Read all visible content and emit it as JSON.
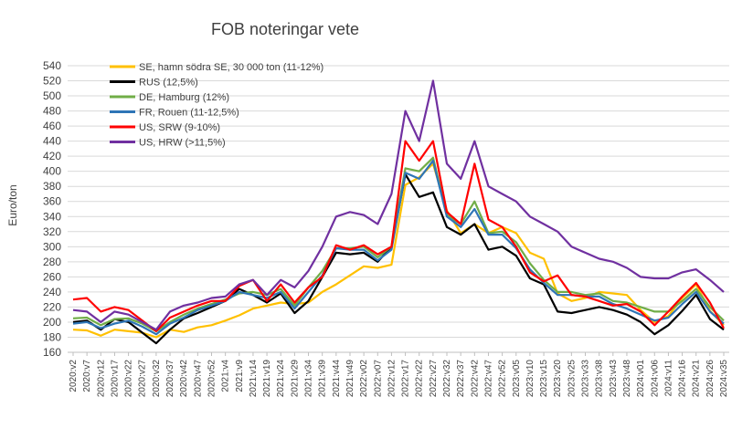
{
  "chart_data": {
    "type": "line",
    "title": "FOB noteringar vete",
    "ylabel": "Euro/ton",
    "xlabel": "",
    "ylim": [
      160,
      540
    ],
    "ytick_step": 20,
    "grid": true,
    "legend_position": "top-left",
    "x_tick_labels": [
      "2020:v2",
      "2020:v7",
      "2020:v12",
      "2020:v17",
      "2020:v22",
      "2020:v27",
      "2020:v32",
      "2020:v37",
      "2020:v42",
      "2020:v47",
      "2020:v52",
      "2021:v4",
      "2021:v9",
      "2021:v14",
      "2021:v19",
      "2021:v24",
      "2021:v29",
      "2021:v34",
      "2021:v39",
      "2021:v44",
      "2021:v49",
      "2022:v02",
      "2022:v07",
      "2022:v12",
      "2022:v17",
      "2022:v22",
      "2022:v27",
      "2022:v32",
      "2022:v37",
      "2022:v42",
      "2022:v47",
      "2022:v52",
      "2023:v05",
      "2023:v10",
      "2023:v15",
      "2023:v20",
      "2023:v25",
      "2023:v33",
      "2023:v38",
      "2023:v43",
      "2023:v48",
      "2024:v01",
      "2024:v06",
      "2024:v11",
      "2024:v16",
      "2024:v21",
      "2024:v26",
      "2024:v35"
    ],
    "x_tick_labels_shown": [
      "2020:v2",
      "2020:v7",
      "2020:v12",
      "2020:v17",
      "2020:v22",
      "2020:v27",
      "2020:v32",
      "2020:v37",
      "2020:v42",
      "2020:v47",
      "2020:v52",
      "2021:v4",
      "2021:v9",
      "2021:v14",
      "2021:v19",
      "2021:v24",
      "2021:v29",
      "2021:v34",
      "2021:v39",
      "2021:v44",
      "2021:v49",
      "2022:v02",
      "2022:v07",
      "2022:v12",
      "2022:v17",
      "2022:v22",
      "2022:v27",
      "2022:v32",
      "2022:v37",
      "2022:v42",
      "2022:v47",
      "2022:v52",
      "2023:v05",
      "2023:v10",
      "2023:v15",
      "2023:v20",
      "2023:v25",
      "2023:v33",
      "2023:v38",
      "2023:v43",
      "2023:v48",
      "2024:v01",
      "2024:v06",
      "2024:v11",
      "2024:v16",
      "2024:v21",
      "2024:v26",
      "2024:v35"
    ],
    "series": [
      {
        "name": "SE, hamn södra SE, 30 000 ton (11-12%)",
        "color": "#FFC000",
        "values": [
          190,
          189,
          182,
          190,
          188,
          186,
          180,
          190,
          187,
          193,
          196,
          202,
          209,
          218,
          222,
          226,
          224,
          226,
          240,
          250,
          262,
          274,
          272,
          276,
          382,
          392,
          410,
          348,
          318,
          330,
          318,
          326,
          318,
          292,
          284,
          238,
          228,
          232,
          240,
          238,
          236,
          216,
          200,
          208,
          232,
          250,
          215,
          196
        ]
      },
      {
        "name": "RUS (12,5%)",
        "color": "#000000",
        "values": [
          200,
          202,
          190,
          204,
          200,
          186,
          172,
          190,
          205,
          212,
          220,
          228,
          244,
          236,
          226,
          238,
          212,
          228,
          260,
          292,
          290,
          292,
          280,
          300,
          396,
          366,
          372,
          326,
          316,
          330,
          296,
          300,
          288,
          258,
          250,
          214,
          212,
          216,
          220,
          216,
          210,
          200,
          184,
          196,
          215,
          236,
          204,
          190
        ]
      },
      {
        "name": "DE, Hamburg (12%)",
        "color": "#70AD47",
        "values": [
          205,
          206,
          196,
          204,
          205,
          198,
          188,
          200,
          210,
          218,
          224,
          230,
          238,
          240,
          236,
          244,
          222,
          246,
          268,
          298,
          298,
          300,
          286,
          300,
          404,
          400,
          418,
          342,
          330,
          360,
          318,
          320,
          306,
          278,
          256,
          240,
          240,
          236,
          238,
          228,
          226,
          220,
          214,
          214,
          228,
          244,
          220,
          202
        ]
      },
      {
        "name": "FR, Rouen (11-12,5%)",
        "color": "#2E75B6",
        "values": [
          198,
          200,
          192,
          198,
          202,
          194,
          184,
          198,
          206,
          216,
          222,
          228,
          240,
          236,
          232,
          240,
          218,
          240,
          262,
          298,
          296,
          296,
          282,
          296,
          398,
          390,
          414,
          340,
          326,
          350,
          316,
          316,
          298,
          270,
          252,
          236,
          236,
          234,
          234,
          224,
          218,
          210,
          202,
          206,
          224,
          240,
          214,
          198
        ]
      },
      {
        "name": "US, SRW (9-10%)",
        "color": "#FF0000",
        "values": [
          230,
          232,
          214,
          220,
          216,
          202,
          188,
          206,
          214,
          222,
          228,
          228,
          248,
          256,
          228,
          250,
          226,
          246,
          260,
          302,
          296,
          302,
          290,
          300,
          440,
          414,
          440,
          346,
          330,
          410,
          336,
          326,
          300,
          266,
          254,
          262,
          236,
          234,
          228,
          222,
          224,
          214,
          196,
          214,
          234,
          252,
          226,
          192
        ]
      },
      {
        "name": "US, HRW (>11,5%)",
        "color": "#7030A0",
        "values": [
          216,
          214,
          200,
          214,
          210,
          200,
          190,
          214,
          222,
          226,
          232,
          234,
          250,
          256,
          236,
          256,
          246,
          268,
          300,
          340,
          346,
          342,
          330,
          370,
          480,
          440,
          520,
          410,
          390,
          440,
          380,
          370,
          360,
          340,
          330,
          320,
          300,
          292,
          284,
          280,
          272,
          260,
          258,
          258,
          266,
          270,
          256,
          240
        ]
      }
    ]
  }
}
